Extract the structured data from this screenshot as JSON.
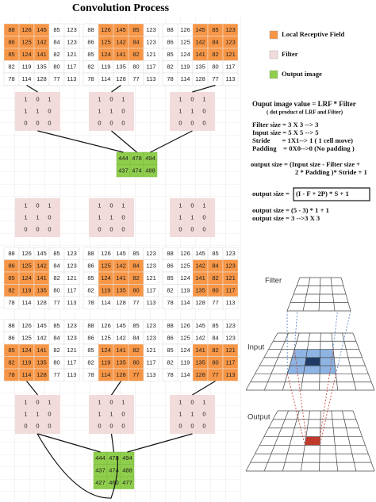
{
  "title": "Convolution Process",
  "input": [
    [
      88,
      126,
      145,
      85,
      123
    ],
    [
      86,
      125,
      142,
      84,
      123
    ],
    [
      85,
      124,
      141,
      82,
      121
    ],
    [
      82,
      119,
      135,
      80,
      117
    ],
    [
      78,
      114,
      128,
      77,
      113
    ]
  ],
  "filter": [
    [
      1,
      0,
      1
    ],
    [
      1,
      1,
      0
    ],
    [
      0,
      0,
      0
    ]
  ],
  "output": [
    [
      444,
      478,
      494
    ],
    [
      437,
      474,
      488
    ],
    [
      427,
      460,
      477
    ]
  ],
  "windows": [
    [
      [
        0,
        0
      ],
      [
        0,
        1
      ],
      [
        0,
        2
      ]
    ],
    [
      [
        1,
        0
      ],
      [
        1,
        1
      ],
      [
        1,
        2
      ]
    ],
    [
      [
        2,
        0
      ],
      [
        2,
        1
      ],
      [
        2,
        2
      ]
    ]
  ],
  "output_rows_shown": [
    2,
    3
  ],
  "legend": [
    {
      "label": "Local Receptive Field",
      "color": "#f79646"
    },
    {
      "label": "Filter",
      "color": "#f2dcdb"
    },
    {
      "label": "Output image",
      "color": "#8fce4c"
    }
  ],
  "notes": {
    "heading": "Ouput image value = LRF * Filter",
    "subheading": "( dot product of LRF and Filter)",
    "filter_size": "Filter size = 3 X 3 --> 3",
    "input_size": "Input size = 5 X 5 --> 5",
    "stride": "Stride       = 1X1--> 1 ( 1 cell move)",
    "padding": "Padding    = 0X0-->0 (No padding )",
    "formula_line1": "output size = (Input size - Filter size +",
    "formula_line2": "2 * Padding )* Stride + 1",
    "formula_label": "output size =",
    "formula_box": "(I - F + 2P) * S + 1",
    "calc1": "output size = (5 - 3) * 1 + 1",
    "calc2": "output size = 3 -->3 X 3"
  },
  "illustration": {
    "filter": "Filter",
    "input": "Input",
    "output": "Output"
  }
}
